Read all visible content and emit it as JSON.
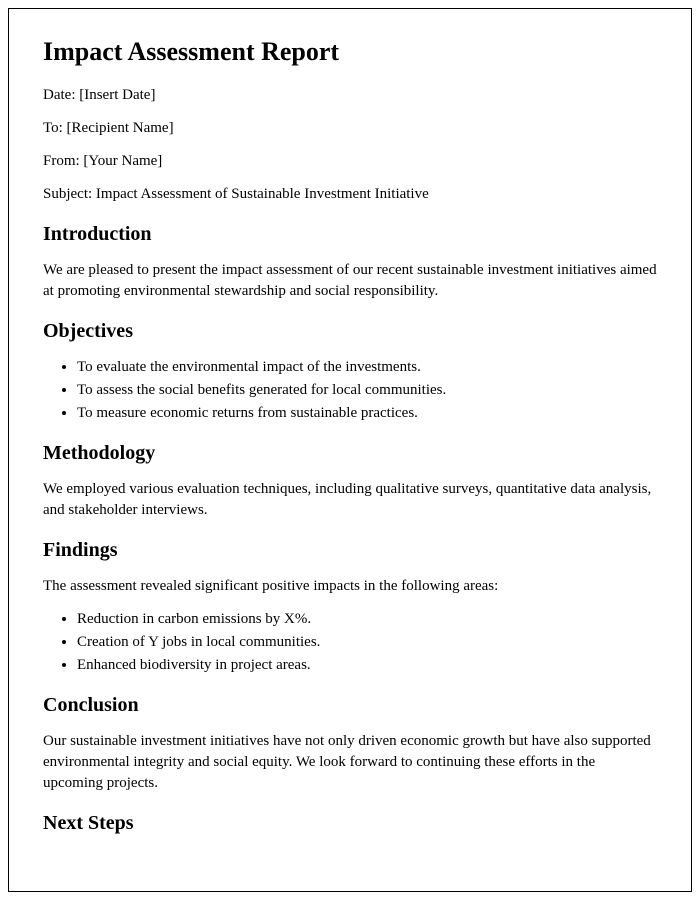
{
  "title": "Impact Assessment Report",
  "meta": {
    "date_label": "Date: [Insert Date]",
    "to_label": "To: [Recipient Name]",
    "from_label": "From: [Your Name]",
    "subject_label": "Subject: Impact Assessment of Sustainable Investment Initiative"
  },
  "sections": {
    "introduction": {
      "heading": "Introduction",
      "body": "We are pleased to present the impact assessment of our recent sustainable investment initiatives aimed at promoting environmental stewardship and social responsibility."
    },
    "objectives": {
      "heading": "Objectives",
      "items": [
        "To evaluate the environmental impact of the investments.",
        "To assess the social benefits generated for local communities.",
        "To measure economic returns from sustainable practices."
      ]
    },
    "methodology": {
      "heading": "Methodology",
      "body": "We employed various evaluation techniques, including qualitative surveys, quantitative data analysis, and stakeholder interviews."
    },
    "findings": {
      "heading": "Findings",
      "intro": "The assessment revealed significant positive impacts in the following areas:",
      "items": [
        "Reduction in carbon emissions by X%.",
        "Creation of Y jobs in local communities.",
        "Enhanced biodiversity in project areas."
      ]
    },
    "conclusion": {
      "heading": "Conclusion",
      "body": "Our sustainable investment initiatives have not only driven economic growth but have also supported environmental integrity and social equity. We look forward to continuing these efforts in the upcoming projects."
    },
    "next_steps": {
      "heading": "Next Steps"
    }
  }
}
